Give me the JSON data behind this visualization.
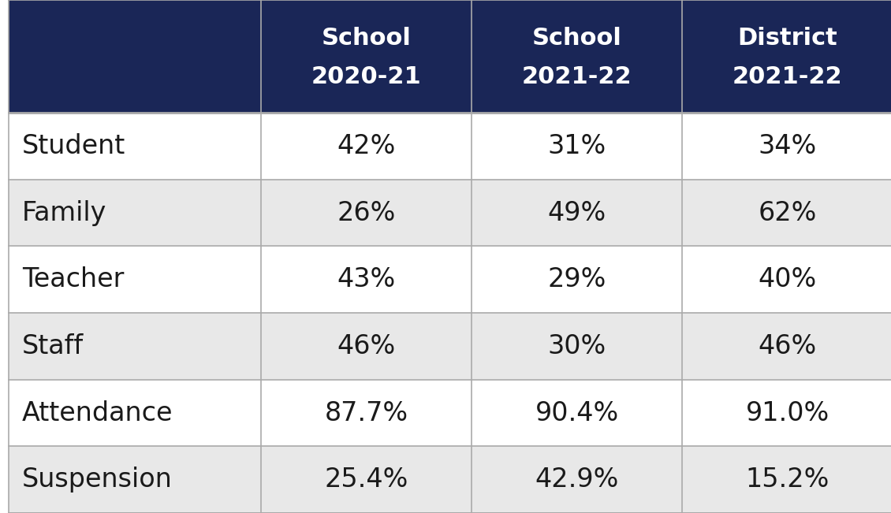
{
  "header_bg_color": "#1a2657",
  "header_text_color": "#ffffff",
  "row_colors": [
    "#ffffff",
    "#e8e8e8"
  ],
  "cell_text_color": "#1a1a1a",
  "col_headers": [
    [
      "School",
      "2020-21"
    ],
    [
      "School",
      "2021-22"
    ],
    [
      "District",
      "2021-22"
    ]
  ],
  "row_labels": [
    "Student",
    "Family",
    "Teacher",
    "Staff",
    "Attendance",
    "Suspension"
  ],
  "data": [
    [
      "42%",
      "31%",
      "34%"
    ],
    [
      "26%",
      "49%",
      "62%"
    ],
    [
      "43%",
      "29%",
      "40%"
    ],
    [
      "46%",
      "30%",
      "46%"
    ],
    [
      "87.7%",
      "90.4%",
      "91.0%"
    ],
    [
      "25.4%",
      "42.9%",
      "15.2%"
    ]
  ],
  "grid_color": "#aaaaaa",
  "header_font_size": 22,
  "cell_font_size": 24,
  "row_label_font_size": 24,
  "figure_bg_color": "#ffffff"
}
